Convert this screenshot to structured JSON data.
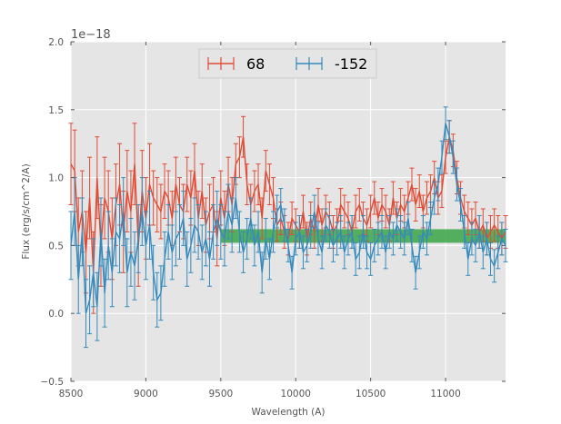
{
  "chart_data": {
    "type": "line",
    "title": "",
    "xlabel": "Wavelength (A)",
    "ylabel": "Flux (erg/s/cm^2/A)",
    "y_offset_label": "1e−18",
    "xlim": [
      8500,
      11400
    ],
    "ylim": [
      -0.5,
      2.0
    ],
    "xticks": [
      8500,
      9000,
      9500,
      10000,
      10500,
      11000
    ],
    "xtick_labels": [
      "8500",
      "9000",
      "9500",
      "10000",
      "10500",
      "11000"
    ],
    "yticks": [
      -0.5,
      0.0,
      0.5,
      1.0,
      1.5,
      2.0
    ],
    "ytick_labels": [
      "−0.5",
      "0.0",
      "0.5",
      "1.0",
      "1.5",
      "2.0"
    ],
    "grid": true,
    "legend_position": "top-center",
    "band": {
      "y_low": 0.52,
      "y_high": 0.62,
      "x_start": 9500,
      "x_end": 11400,
      "color": "#3aa645"
    },
    "series": [
      {
        "name": "68",
        "color": "#e24a33",
        "x": [
          8500,
          8525,
          8550,
          8575,
          8600,
          8625,
          8650,
          8675,
          8700,
          8725,
          8750,
          8775,
          8800,
          8825,
          8850,
          8875,
          8900,
          8925,
          8950,
          8975,
          9000,
          9025,
          9050,
          9075,
          9100,
          9125,
          9150,
          9175,
          9200,
          9225,
          9250,
          9275,
          9300,
          9325,
          9350,
          9375,
          9400,
          9425,
          9450,
          9475,
          9500,
          9525,
          9550,
          9575,
          9600,
          9625,
          9650,
          9675,
          9700,
          9725,
          9750,
          9775,
          9800,
          9825,
          9850,
          9875,
          9900,
          9925,
          9950,
          9975,
          10000,
          10025,
          10050,
          10075,
          10100,
          10125,
          10150,
          10175,
          10200,
          10225,
          10250,
          10275,
          10300,
          10325,
          10350,
          10375,
          10400,
          10425,
          10450,
          10475,
          10500,
          10525,
          10550,
          10575,
          10600,
          10625,
          10650,
          10675,
          10700,
          10725,
          10750,
          10775,
          10800,
          10825,
          10850,
          10875,
          10900,
          10925,
          10950,
          10975,
          11000,
          11025,
          11050,
          11075,
          11100,
          11125,
          11150,
          11175,
          11200,
          11225,
          11250,
          11275,
          11300,
          11325,
          11350,
          11375,
          11400
        ],
        "y": [
          1.1,
          1.05,
          0.6,
          0.75,
          0.45,
          0.85,
          0.3,
          1.0,
          0.5,
          0.85,
          0.75,
          0.55,
          0.8,
          0.95,
          0.6,
          0.9,
          0.75,
          1.1,
          0.5,
          0.9,
          0.7,
          0.95,
          0.85,
          0.8,
          0.75,
          0.9,
          0.85,
          0.7,
          0.95,
          0.8,
          0.75,
          0.95,
          0.85,
          1.05,
          0.7,
          0.9,
          0.65,
          0.75,
          0.8,
          0.55,
          0.85,
          0.7,
          0.95,
          0.8,
          1.1,
          1.15,
          1.3,
          0.95,
          0.8,
          0.9,
          0.95,
          0.7,
          1.05,
          0.95,
          0.85,
          0.65,
          0.7,
          0.6,
          0.55,
          0.7,
          0.65,
          0.6,
          0.75,
          0.55,
          0.7,
          0.6,
          0.8,
          0.65,
          0.75,
          0.7,
          0.6,
          0.65,
          0.8,
          0.75,
          0.7,
          0.6,
          0.75,
          0.8,
          0.7,
          0.65,
          0.75,
          0.85,
          0.7,
          0.8,
          0.75,
          0.65,
          0.85,
          0.7,
          0.8,
          0.75,
          0.85,
          0.95,
          0.8,
          0.9,
          0.75,
          0.85,
          0.9,
          1.0,
          0.85,
          0.9,
          1.15,
          1.3,
          1.2,
          1.0,
          0.85,
          0.75,
          0.7,
          0.65,
          0.7,
          0.6,
          0.65,
          0.55,
          0.6,
          0.65,
          0.6,
          0.55,
          0.6
        ],
        "err": [
          0.3,
          0.3,
          0.25,
          0.3,
          0.3,
          0.3,
          0.3,
          0.3,
          0.3,
          0.3,
          0.3,
          0.3,
          0.3,
          0.3,
          0.3,
          0.3,
          0.3,
          0.3,
          0.3,
          0.3,
          0.3,
          0.3,
          0.2,
          0.2,
          0.2,
          0.2,
          0.2,
          0.2,
          0.2,
          0.2,
          0.2,
          0.2,
          0.2,
          0.2,
          0.2,
          0.2,
          0.2,
          0.2,
          0.2,
          0.2,
          0.2,
          0.2,
          0.2,
          0.2,
          0.15,
          0.15,
          0.15,
          0.15,
          0.15,
          0.15,
          0.15,
          0.15,
          0.15,
          0.15,
          0.15,
          0.12,
          0.12,
          0.12,
          0.12,
          0.12,
          0.12,
          0.12,
          0.12,
          0.12,
          0.12,
          0.12,
          0.12,
          0.12,
          0.12,
          0.12,
          0.12,
          0.12,
          0.12,
          0.12,
          0.12,
          0.12,
          0.12,
          0.12,
          0.12,
          0.12,
          0.12,
          0.12,
          0.12,
          0.12,
          0.12,
          0.12,
          0.12,
          0.12,
          0.12,
          0.12,
          0.12,
          0.12,
          0.12,
          0.12,
          0.12,
          0.12,
          0.12,
          0.12,
          0.12,
          0.12,
          0.12,
          0.12,
          0.12,
          0.12,
          0.12,
          0.12,
          0.12,
          0.12,
          0.12,
          0.12,
          0.12,
          0.12,
          0.12,
          0.12,
          0.12,
          0.12,
          0.12
        ]
      },
      {
        "name": "-152",
        "color": "#348abd",
        "x": [
          8500,
          8525,
          8550,
          8575,
          8600,
          8625,
          8650,
          8675,
          8700,
          8725,
          8750,
          8775,
          8800,
          8825,
          8850,
          8875,
          8900,
          8925,
          8950,
          8975,
          9000,
          9025,
          9050,
          9075,
          9100,
          9125,
          9150,
          9175,
          9200,
          9225,
          9250,
          9275,
          9300,
          9325,
          9350,
          9375,
          9400,
          9425,
          9450,
          9475,
          9500,
          9525,
          9550,
          9575,
          9600,
          9625,
          9650,
          9675,
          9700,
          9725,
          9750,
          9775,
          9800,
          9825,
          9850,
          9875,
          9900,
          9925,
          9950,
          9975,
          10000,
          10025,
          10050,
          10075,
          10100,
          10125,
          10150,
          10175,
          10200,
          10225,
          10250,
          10275,
          10300,
          10325,
          10350,
          10375,
          10400,
          10425,
          10450,
          10475,
          10500,
          10525,
          10550,
          10575,
          10600,
          10625,
          10650,
          10675,
          10700,
          10725,
          10750,
          10775,
          10800,
          10825,
          10850,
          10875,
          10900,
          10925,
          10950,
          10975,
          11000,
          11025,
          11050,
          11075,
          11100,
          11125,
          11150,
          11175,
          11200,
          11225,
          11250,
          11275,
          11300,
          11325,
          11350,
          11375,
          11400
        ],
        "y": [
          0.5,
          0.75,
          0.25,
          0.6,
          0.0,
          0.1,
          0.3,
          0.05,
          0.6,
          0.15,
          0.5,
          0.3,
          0.6,
          0.55,
          0.75,
          0.3,
          0.45,
          0.35,
          0.55,
          0.75,
          0.5,
          0.65,
          0.3,
          0.1,
          0.15,
          0.4,
          0.6,
          0.45,
          0.55,
          0.6,
          0.7,
          0.4,
          0.5,
          0.65,
          0.6,
          0.45,
          0.55,
          0.4,
          0.6,
          0.7,
          0.6,
          0.55,
          0.75,
          0.65,
          0.85,
          0.6,
          0.45,
          0.55,
          0.7,
          0.5,
          0.6,
          0.3,
          0.55,
          0.4,
          0.6,
          0.75,
          0.8,
          0.65,
          0.5,
          0.3,
          0.55,
          0.6,
          0.45,
          0.5,
          0.6,
          0.75,
          0.55,
          0.45,
          0.65,
          0.6,
          0.5,
          0.55,
          0.6,
          0.45,
          0.55,
          0.6,
          0.4,
          0.45,
          0.6,
          0.45,
          0.4,
          0.5,
          0.55,
          0.6,
          0.45,
          0.6,
          0.55,
          0.65,
          0.6,
          0.55,
          0.7,
          0.5,
          0.3,
          0.45,
          0.6,
          0.55,
          0.7,
          0.85,
          0.95,
          1.15,
          1.4,
          1.3,
          1.15,
          0.95,
          0.8,
          0.6,
          0.4,
          0.55,
          0.5,
          0.6,
          0.45,
          0.55,
          0.4,
          0.35,
          0.45,
          0.55,
          0.5
        ],
        "err": [
          0.25,
          0.25,
          0.25,
          0.25,
          0.25,
          0.25,
          0.25,
          0.25,
          0.25,
          0.25,
          0.25,
          0.25,
          0.25,
          0.25,
          0.25,
          0.25,
          0.25,
          0.25,
          0.25,
          0.25,
          0.25,
          0.25,
          0.2,
          0.2,
          0.2,
          0.2,
          0.2,
          0.2,
          0.2,
          0.2,
          0.2,
          0.2,
          0.2,
          0.2,
          0.2,
          0.2,
          0.2,
          0.2,
          0.2,
          0.2,
          0.2,
          0.2,
          0.2,
          0.2,
          0.15,
          0.15,
          0.15,
          0.15,
          0.15,
          0.15,
          0.15,
          0.15,
          0.15,
          0.15,
          0.15,
          0.12,
          0.12,
          0.12,
          0.12,
          0.12,
          0.12,
          0.12,
          0.12,
          0.12,
          0.12,
          0.12,
          0.12,
          0.12,
          0.12,
          0.12,
          0.12,
          0.12,
          0.12,
          0.12,
          0.12,
          0.12,
          0.12,
          0.12,
          0.12,
          0.12,
          0.12,
          0.12,
          0.12,
          0.12,
          0.12,
          0.12,
          0.12,
          0.12,
          0.12,
          0.12,
          0.12,
          0.12,
          0.12,
          0.12,
          0.12,
          0.12,
          0.12,
          0.12,
          0.12,
          0.12,
          0.12,
          0.12,
          0.12,
          0.12,
          0.12,
          0.12,
          0.12,
          0.12,
          0.12,
          0.12,
          0.12,
          0.12,
          0.12,
          0.12,
          0.12,
          0.12,
          0.12
        ]
      }
    ]
  }
}
